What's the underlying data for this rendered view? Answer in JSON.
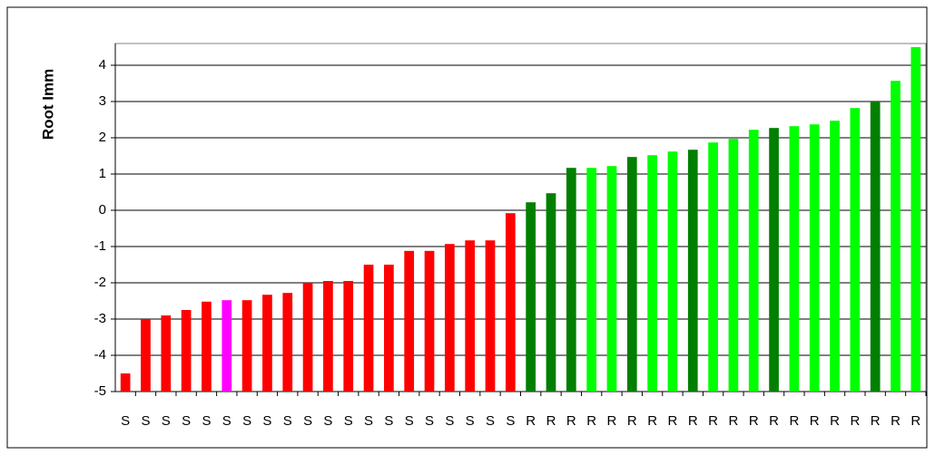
{
  "chart_data": {
    "type": "bar",
    "y_label": "Root Imm",
    "categories": [
      "S",
      "S",
      "S",
      "S",
      "S",
      "S",
      "S",
      "S",
      "S",
      "S",
      "S",
      "S",
      "S",
      "S",
      "S",
      "S",
      "S",
      "S",
      "S",
      "S",
      "R",
      "R",
      "R",
      "R",
      "R",
      "R",
      "R",
      "R",
      "R",
      "R",
      "R",
      "R",
      "R",
      "R",
      "R",
      "R",
      "R",
      "R",
      "R",
      "R"
    ],
    "values": [
      -4.5,
      -3.0,
      -2.9,
      -2.75,
      -2.52,
      -2.48,
      -2.48,
      -2.33,
      -2.28,
      -2.0,
      -1.95,
      -1.95,
      -1.5,
      -1.5,
      -1.12,
      -1.12,
      -0.93,
      -0.83,
      -0.83,
      -0.08,
      0.22,
      0.47,
      1.17,
      1.17,
      1.22,
      1.47,
      1.52,
      1.62,
      1.67,
      1.87,
      1.97,
      2.22,
      2.27,
      2.32,
      2.37,
      2.47,
      2.82,
      3.0,
      3.57,
      4.5
    ],
    "colors": [
      "#ff0000",
      "#ff0000",
      "#ff0000",
      "#ff0000",
      "#ff0000",
      "#ff00ff",
      "#ff0000",
      "#ff0000",
      "#ff0000",
      "#ff0000",
      "#ff0000",
      "#ff0000",
      "#ff0000",
      "#ff0000",
      "#ff0000",
      "#ff0000",
      "#ff0000",
      "#ff0000",
      "#ff0000",
      "#ff0000",
      "#007f00",
      "#007f00",
      "#007f00",
      "#00ff00",
      "#00ff00",
      "#007f00",
      "#00ff00",
      "#00ff00",
      "#007f00",
      "#00ff00",
      "#00ff00",
      "#00ff00",
      "#007f00",
      "#00ff00",
      "#00ff00",
      "#00ff00",
      "#00ff00",
      "#007f00",
      "#00ff00",
      "#00ff00"
    ],
    "ylim": [
      -5,
      4.6
    ],
    "yticks": [
      -5,
      -4,
      -3,
      -2,
      -1,
      0,
      1,
      2,
      3,
      4
    ],
    "grid": true
  }
}
